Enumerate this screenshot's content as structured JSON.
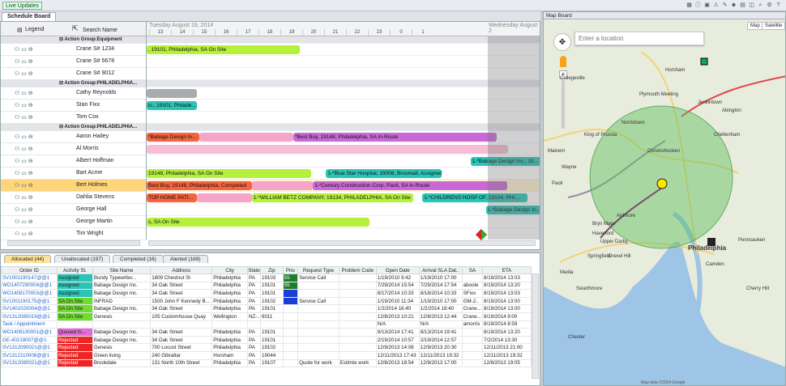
{
  "toolbar": {
    "live_updates": "Live Updates",
    "icons": [
      "grid-icon",
      "info-icon",
      "calendar-icon",
      "warning-icon",
      "edit-icon",
      "user-icon",
      "doc-icon",
      "chart-icon",
      "search-icon",
      "gear-icon",
      "help-icon"
    ]
  },
  "schedule": {
    "tab": "Schedule Board",
    "legend": "Legend",
    "search_name": "Search Name",
    "date_left": "Tuesday August 19, 2014",
    "date_right": "Wednesday August 2",
    "hours": [
      "13",
      "14",
      "15",
      "16",
      "17",
      "18",
      "19",
      "20",
      "21",
      "22",
      "23",
      "0",
      "1"
    ],
    "rows": [
      {
        "kind": "group",
        "name": "Action Group:Equipment"
      },
      {
        "kind": "res",
        "name": "Crane S# 1234"
      },
      {
        "kind": "res",
        "name": "Crane S# 5678"
      },
      {
        "kind": "res",
        "name": "Crane S# 9012"
      },
      {
        "kind": "group",
        "name": "Action Group:PHILADELPHIA..."
      },
      {
        "kind": "res",
        "name": "Cathy Reynolds"
      },
      {
        "kind": "res",
        "name": "Stan Fixx"
      },
      {
        "kind": "res",
        "name": "Tom Cox"
      },
      {
        "kind": "group",
        "name": "Action Group:PHILADELPHIA..."
      },
      {
        "kind": "res",
        "name": "Aaron Hailey"
      },
      {
        "kind": "res",
        "name": "Al Morris"
      },
      {
        "kind": "res",
        "name": "Albert Hoffman"
      },
      {
        "kind": "res",
        "name": "Bart Acme"
      },
      {
        "kind": "res",
        "name": "Bert Holmes",
        "selected": true
      },
      {
        "kind": "res",
        "name": "Dahlia Stevens"
      },
      {
        "kind": "res",
        "name": "George Hall"
      },
      {
        "kind": "res",
        "name": "George Martin"
      },
      {
        "kind": "res",
        "name": "Tim Wright"
      }
    ],
    "bars": [
      {
        "row": 1,
        "start": 0,
        "end": 7,
        "text": ", 19101, Philadelphia, SA On Site",
        "color": "#b5f03a"
      },
      {
        "row": 5,
        "start": 0,
        "end": 2.3,
        "text": "",
        "color": "#a9abad"
      },
      {
        "row": 6,
        "start": 0,
        "end": 2.3,
        "text": "ic., 19101, Philade...",
        "color": "#2cc4b6"
      },
      {
        "row": 9,
        "start": 0,
        "end": 2.4,
        "text": "*Babage Design In...",
        "color": "#f4643f"
      },
      {
        "row": 9,
        "start": 2.4,
        "end": 6.7,
        "text": "",
        "color": "#f5a6c8"
      },
      {
        "row": 9,
        "start": 6.7,
        "end": 16,
        "text": "*Best Buy, 19148, Philadelphia, SA In-Route",
        "color": "#c969d6"
      },
      {
        "row": 10,
        "start": 0,
        "end": 16.5,
        "text": "",
        "color": "#f8bcd4"
      },
      {
        "row": 11,
        "start": 14.8,
        "end": 18,
        "text": "1-*Babage Design Inc., 19...",
        "color": "#2cc4b6"
      },
      {
        "row": 12,
        "start": 0,
        "end": 7.5,
        "text": "19148, Philadelphia, SA On Site",
        "color": "#b5f03a"
      },
      {
        "row": 12,
        "start": 8.2,
        "end": 13.5,
        "text": "1-*Blue Star Hospital, 19008, Broomall, Assigned",
        "color": "#2cc4b6"
      },
      {
        "row": 13,
        "start": 0,
        "end": 4.8,
        "text": "Best Buy, 19148, Philadelphia, Completed",
        "color": "#f4643f"
      },
      {
        "row": 13,
        "start": 4.8,
        "end": 7.6,
        "text": "",
        "color": "#f5a6c8"
      },
      {
        "row": 13,
        "start": 7.6,
        "end": 16.5,
        "text": "1-*Century Construction  Corp, Paoli, SA In-Route",
        "color": "#c969d6"
      },
      {
        "row": 14,
        "start": 0,
        "end": 2.3,
        "text": "TOP  HOME  PATI...",
        "color": "#f4643f"
      },
      {
        "row": 14,
        "start": 2.3,
        "end": 4.8,
        "text": "",
        "color": "#f5a6c8"
      },
      {
        "row": 14,
        "start": 4.8,
        "end": 12.2,
        "text": "1-*WILLIAM BETZ COMPANY, 19134, PHILADELPHIA, SA On Site",
        "color": "#b5f03a"
      },
      {
        "row": 14,
        "start": 12.6,
        "end": 17.4,
        "text": "1-*CHILDRENS HOSP OF, 19104, PHI...",
        "color": "#2cc4b6"
      },
      {
        "row": 15,
        "start": 15.5,
        "end": 18,
        "text": "1-*Babage Design In...",
        "color": "#2cc4b6"
      },
      {
        "row": 16,
        "start": 0,
        "end": 10.2,
        "text": "s, SA On Site",
        "color": "#b5f03a"
      }
    ]
  },
  "orders": {
    "tabs": [
      "Allocated (44)",
      "Unallocated (197)",
      "Completed (16)",
      "Alerted (169)"
    ],
    "columns": [
      "Order ID",
      "Activity St.",
      "Site Name",
      "Address",
      "City",
      "State",
      "Zip",
      "Prio",
      "Request Type",
      "Problem Code",
      "Open Date",
      "Arrival SLA Dat..",
      "SA",
      "ETA"
    ],
    "rows": [
      [
        "SV1001190147@@1",
        "Assigned",
        "Bundy Typewriter...",
        "1809 Chestnut St",
        "Philadelphia",
        "PA",
        "19103",
        "55",
        "Service Call",
        "",
        "1/19/2010 9:42",
        "1/19/2010 17:00",
        "",
        "8/19/2014 13:03"
      ],
      [
        "WO1407290004@@1",
        "Assigned",
        "Babage Design Inc.",
        "34 Oak Street",
        "Philadelphia",
        "PA",
        "19101",
        "55",
        "",
        "",
        "7/29/2014 15:54",
        "7/29/2014 17:54",
        "aboole",
        "8/19/2014 13:20"
      ],
      [
        "WO1408170003@@1",
        "Assigned",
        "Babage Design Inc.",
        "34 Oak Street",
        "Philadelphia",
        "PA",
        "19101",
        "",
        "",
        "",
        "8/17/2014 10:33",
        "8/18/2014 10:33",
        "SFixx",
        "8/19/2014 13:03"
      ],
      [
        "SV1001190175@@1",
        "SA On Site",
        "INFRAD",
        "1500 John F Kennedy B...",
        "Philadelphia",
        "PA",
        "19102",
        "",
        "Service Call",
        "",
        "1/19/2010 11:34",
        "1/19/2010 17:00",
        "GM-2..",
        "8/19/2014 13:00"
      ],
      [
        "SV1401020004@@1",
        "SA On Site",
        "Babage Design Inc.",
        "34 Oak Street",
        "Philadelphia",
        "PA",
        "19101",
        "",
        "",
        "",
        "1/2/2014 16:40",
        "1/2/2014 18:40",
        "Crane...",
        "8/19/2014 13:00"
      ],
      [
        "SV1312080019@@1",
        "SA On Site",
        "Genesis",
        "105 Customhouse Quay",
        "Wellington",
        "NZ-...",
        "6011",
        "",
        "",
        "",
        "12/8/2013 10:21",
        "12/8/2013 12:44",
        "Crane...",
        "8/19/2014 9:00"
      ],
      [
        "Task / Appointment",
        "",
        "",
        "",
        "",
        "",
        "",
        "",
        "",
        "",
        "N/A",
        "N/A",
        "amorris",
        "8/19/2014 8:59"
      ],
      [
        "WO1408130001@@1",
        "Queued fo...",
        "Babage Design Inc.",
        "34 Oak Street",
        "Philadelphia",
        "PA",
        "19101",
        "",
        "",
        "",
        "8/13/2014 17:41",
        "8/13/2014 19:41",
        "",
        "8/19/2014 13:20"
      ],
      [
        "GE-40219007@@1",
        "Rejected",
        "Babage Design Inc.",
        "34 Oak Street",
        "Philadelphia",
        "PA",
        "19101",
        "",
        "",
        "",
        "2/19/2014 10:57",
        "2/19/2014 12:57",
        "",
        "7/2/2014 13:30"
      ],
      [
        "SV1312090021@@1",
        "Rejected",
        "Genesis",
        "700 Locust Street",
        "Philadelphia",
        "PA",
        "19102",
        "",
        "",
        "",
        "12/9/2013 14:08",
        "12/9/2013 20:30",
        "",
        "12/11/2013 21:00"
      ],
      [
        "SV1312110008@@1",
        "Rejected",
        "Green living",
        "240 Gibraltar",
        "Horsham",
        "PA",
        "19044",
        "",
        "",
        "",
        "12/11/2013 17:43",
        "12/11/2013 19:32",
        "",
        "12/11/2013 19:32"
      ],
      [
        "SV1312080021@@1",
        "Rejected",
        "Brookdale",
        "131 North 10th Street",
        "Philadelphia",
        "PA",
        "19107",
        "",
        "Quote for work",
        "Estimte work",
        "12/8/2013 18:54",
        "12/9/2013 17:00",
        "",
        "12/8/2013 19:05"
      ]
    ]
  },
  "map": {
    "title": "Map Board",
    "search_placeholder": "Enter a location",
    "map_btn": "Map",
    "satellite_btn": "Satellite",
    "cities": [
      "Norristown",
      "Conshohocken",
      "Plymouth Meeting",
      "King of Prussia",
      "Wayne",
      "Bryn Mawr",
      "Ardmore",
      "Media",
      "Upper Darby",
      "Philadelphia",
      "Springfield",
      "Haverford",
      "Horsham",
      "Abington",
      "Jenkintown",
      "Cheltenham",
      "Cherry Hill",
      "Camden",
      "Pennsauken",
      "Collegeville",
      "Malvern",
      "Paoli",
      "Drexel Hill",
      "Swarthmore",
      "Chester"
    ],
    "attribution": "Map data ©2014 Google"
  },
  "status_colors": {
    "Assigned": "#2cc4b6",
    "SA On Site": "#6fdc2f",
    "Queued fo...": "#e36bd8",
    "Rejected": "#ee2525"
  }
}
